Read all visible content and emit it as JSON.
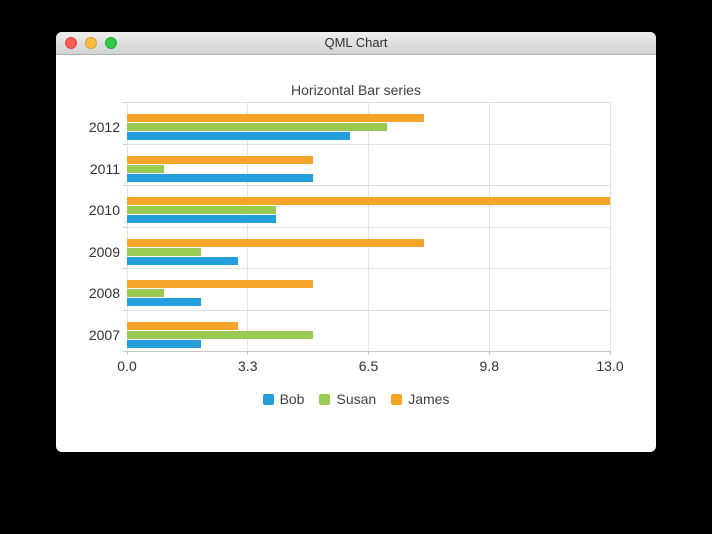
{
  "window": {
    "title": "QML Chart",
    "traffic_lights": [
      {
        "name": "close",
        "color": "#fc5a54",
        "border": "#dd4741"
      },
      {
        "name": "minimize",
        "color": "#fdbc40",
        "border": "#d9a02f"
      },
      {
        "name": "zoom",
        "color": "#33c748",
        "border": "#27aa35"
      }
    ]
  },
  "chart_data": {
    "type": "bar",
    "orientation": "horizontal",
    "title": "Horizontal Bar series",
    "categories": [
      "2007",
      "2008",
      "2009",
      "2010",
      "2011",
      "2012"
    ],
    "series": [
      {
        "name": "Bob",
        "color": "#249fdb",
        "values": [
          2,
          2,
          3,
          4,
          5,
          6
        ]
      },
      {
        "name": "Susan",
        "color": "#99ca53",
        "values": [
          5,
          1,
          2,
          4,
          1,
          7
        ]
      },
      {
        "name": "James",
        "color": "#f4a52a",
        "values": [
          3,
          5,
          8,
          13,
          5,
          8
        ]
      }
    ],
    "bar_order_in_group_top_to_bottom": [
      "James",
      "Susan",
      "Bob"
    ],
    "category_order_top_to_bottom": [
      "2012",
      "2011",
      "2010",
      "2009",
      "2008",
      "2007"
    ],
    "xlim": [
      0,
      13
    ],
    "x_tick_labels": [
      "0.0",
      "3.3",
      "6.5",
      "9.8",
      "13.0"
    ],
    "grid": true,
    "colors": {
      "gridline": "#e2e2e2",
      "axis_line": "#c8c8c8",
      "label_text": "#303136"
    },
    "legend": {
      "position": "bottom",
      "entries": [
        "Bob",
        "Susan",
        "James"
      ]
    }
  }
}
